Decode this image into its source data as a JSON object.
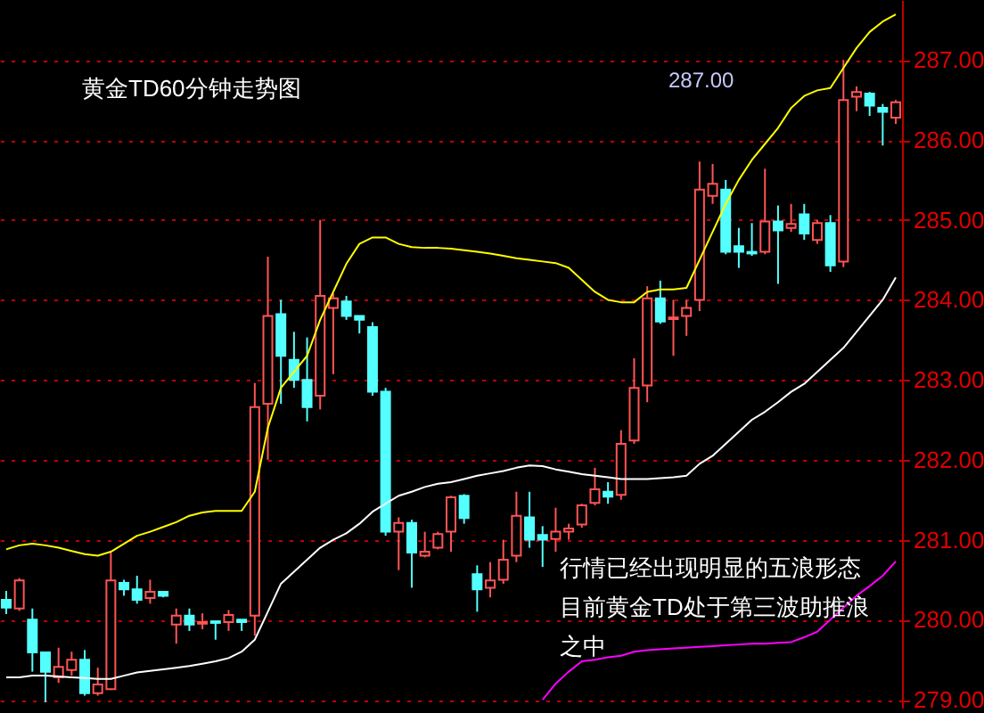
{
  "chart_data": {
    "type": "candlestick",
    "title": "黄金TD60分钟走势图",
    "annotations": [
      "287.00",
      "行情已经出现明显的五浪形态",
      "目前黄金TD处于第三波助推浪之中"
    ],
    "categories": [
      null,
      null,
      null,
      null,
      null,
      null,
      null,
      null,
      null,
      null,
      null,
      null,
      null,
      null,
      null,
      null,
      null,
      null,
      null,
      null,
      null,
      null,
      null,
      null,
      null,
      null,
      null,
      null,
      null,
      null,
      null,
      null,
      null,
      null,
      null,
      null,
      null,
      null,
      null,
      null,
      null,
      null,
      null,
      null,
      null,
      null,
      null,
      null,
      null,
      null,
      null,
      null,
      null,
      null,
      null,
      null,
      null,
      null,
      null,
      null,
      null,
      null,
      null,
      null,
      null,
      null,
      null,
      null,
      null
    ],
    "ohlc": [
      [
        280.25,
        280.36,
        280.07,
        280.15
      ],
      [
        280.14,
        280.52,
        280.11,
        280.49
      ],
      [
        280.0,
        280.14,
        279.35,
        279.59
      ],
      [
        279.59,
        279.6,
        278.97,
        279.35
      ],
      [
        279.28,
        279.65,
        279.21,
        279.41
      ],
      [
        279.37,
        279.6,
        279.3,
        279.5
      ],
      [
        279.5,
        279.62,
        279.05,
        279.08
      ],
      [
        279.08,
        279.4,
        279.05,
        279.19
      ],
      [
        279.13,
        280.84,
        279.12,
        280.49
      ],
      [
        280.46,
        280.5,
        280.3,
        280.38
      ],
      [
        280.38,
        280.55,
        280.2,
        280.25
      ],
      [
        280.27,
        280.5,
        280.2,
        280.35
      ],
      [
        280.35,
        280.36,
        280.28,
        280.3
      ],
      [
        279.94,
        280.14,
        279.7,
        280.05
      ],
      [
        280.05,
        280.14,
        279.86,
        279.94
      ],
      [
        279.95,
        280.08,
        279.88,
        279.97
      ],
      [
        279.98,
        279.98,
        279.75,
        279.96
      ],
      [
        279.97,
        280.12,
        279.86,
        280.06
      ],
      [
        280.0,
        280.0,
        279.86,
        279.97
      ],
      [
        280.05,
        282.96,
        279.8,
        282.66
      ],
      [
        282.7,
        284.54,
        282.0,
        283.8
      ],
      [
        283.82,
        284.0,
        282.7,
        283.3
      ],
      [
        283.25,
        283.6,
        282.9,
        283.0
      ],
      [
        283.0,
        283.53,
        282.48,
        282.66
      ],
      [
        282.8,
        285.0,
        282.63,
        284.05
      ],
      [
        283.9,
        284.08,
        283.07,
        284.02
      ],
      [
        283.98,
        284.05,
        283.75,
        283.8
      ],
      [
        283.8,
        283.8,
        283.58,
        283.75
      ],
      [
        283.66,
        283.72,
        282.8,
        282.85
      ],
      [
        282.85,
        282.9,
        281.05,
        281.1
      ],
      [
        281.1,
        281.28,
        280.62,
        281.21
      ],
      [
        281.21,
        281.25,
        280.4,
        280.84
      ],
      [
        280.8,
        281.1,
        280.78,
        280.85
      ],
      [
        280.9,
        281.1,
        280.88,
        281.07
      ],
      [
        281.1,
        281.55,
        280.85,
        281.53
      ],
      [
        281.55,
        281.57,
        281.2,
        281.27
      ],
      [
        280.57,
        280.68,
        280.1,
        280.38
      ],
      [
        280.4,
        280.72,
        280.28,
        280.49
      ],
      [
        280.5,
        281.0,
        280.45,
        280.75
      ],
      [
        280.8,
        281.6,
        280.72,
        281.3
      ],
      [
        281.28,
        281.6,
        280.9,
        281.0
      ],
      [
        281.06,
        281.17,
        280.66,
        281.0
      ],
      [
        281.01,
        281.4,
        280.85,
        281.1
      ],
      [
        281.1,
        281.2,
        281.0,
        281.14
      ],
      [
        281.19,
        281.45,
        281.15,
        281.43
      ],
      [
        281.46,
        281.9,
        281.43,
        281.63
      ],
      [
        281.6,
        281.72,
        281.45,
        281.54
      ],
      [
        281.56,
        282.37,
        281.5,
        282.2
      ],
      [
        282.24,
        283.27,
        282.2,
        282.9
      ],
      [
        282.93,
        284.17,
        282.72,
        284.02
      ],
      [
        284.02,
        284.24,
        283.7,
        283.73
      ],
      [
        283.76,
        284.0,
        283.3,
        283.78
      ],
      [
        283.8,
        284.0,
        283.55,
        283.9
      ],
      [
        284.0,
        285.73,
        283.86,
        285.38
      ],
      [
        285.3,
        285.7,
        285.2,
        285.45
      ],
      [
        285.38,
        285.5,
        284.57,
        284.6
      ],
      [
        284.67,
        284.9,
        284.4,
        284.6
      ],
      [
        284.6,
        284.96,
        284.55,
        284.58
      ],
      [
        284.6,
        285.64,
        284.57,
        284.98
      ],
      [
        284.98,
        285.18,
        284.2,
        284.87
      ],
      [
        284.9,
        285.2,
        284.85,
        284.95
      ],
      [
        285.07,
        285.2,
        284.75,
        284.83
      ],
      [
        284.75,
        285.0,
        284.7,
        284.96
      ],
      [
        284.96,
        285.06,
        284.35,
        284.43
      ],
      [
        284.48,
        287.0,
        284.41,
        286.5
      ],
      [
        286.54,
        286.67,
        286.36,
        286.6
      ],
      [
        286.58,
        286.6,
        286.3,
        286.43
      ],
      [
        286.4,
        286.45,
        285.93,
        286.35
      ],
      [
        286.28,
        286.5,
        286.2,
        286.47
      ]
    ],
    "colors": [
      "#54ffff",
      "#ff5454",
      "#54ffff",
      "#54ffff",
      "#ff5454",
      "#ff5454",
      "#54ffff",
      "#ff5454",
      "#ff5454",
      "#54ffff",
      "#54ffff",
      "#ff5454",
      "#54ffff",
      "#ff5454",
      "#54ffff",
      "#ff5454",
      "#54ffff",
      "#ff5454",
      "#54ffff",
      "#ff5454",
      "#ff5454",
      "#54ffff",
      "#54ffff",
      "#54ffff",
      "#ff5454",
      "#ff5454",
      "#54ffff",
      "#54ffff",
      "#54ffff",
      "#54ffff",
      "#ff5454",
      "#54ffff",
      "#ff5454",
      "#ff5454",
      "#ff5454",
      "#54ffff",
      "#54ffff",
      "#ff5454",
      "#ff5454",
      "#ff5454",
      "#54ffff",
      "#54ffff",
      "#ff5454",
      "#ff5454",
      "#ff5454",
      "#ff5454",
      "#54ffff",
      "#ff5454",
      "#ff5454",
      "#ff5454",
      "#54ffff",
      "#ff5454",
      "#ff5454",
      "#ff5454",
      "#ff5454",
      "#54ffff",
      "#54ffff",
      "#54ffff",
      "#ff5454",
      "#54ffff",
      "#ff5454",
      "#54ffff",
      "#ff5454",
      "#54ffff",
      "#ff5454",
      "#ff5454",
      "#54ffff",
      "#54ffff",
      "#ff5454"
    ],
    "series": [
      {
        "type": "line",
        "color": "#ffff00",
        "values": [
          280.88,
          280.93,
          280.95,
          280.93,
          280.9,
          280.86,
          280.82,
          280.8,
          280.85,
          280.95,
          281.05,
          281.1,
          281.16,
          281.22,
          281.3,
          281.34,
          281.36,
          281.36,
          281.36,
          281.6,
          282.4,
          282.9,
          283.1,
          283.3,
          283.75,
          284.1,
          284.45,
          284.7,
          284.78,
          284.78,
          284.7,
          284.66,
          284.65,
          284.65,
          284.64,
          284.62,
          284.6,
          284.58,
          284.55,
          284.52,
          284.5,
          284.48,
          284.46,
          284.4,
          284.25,
          284.1,
          284.0,
          283.97,
          283.97,
          284.1,
          284.13,
          284.13,
          284.15,
          284.5,
          284.85,
          285.2,
          285.5,
          285.75,
          285.95,
          286.15,
          286.4,
          286.55,
          286.62,
          286.65,
          286.9,
          287.15,
          287.35,
          287.48,
          287.57
        ]
      },
      {
        "type": "line",
        "color": "#ffffff",
        "values": [
          279.28,
          279.28,
          279.3,
          279.3,
          279.29,
          279.28,
          279.27,
          279.26,
          279.26,
          279.3,
          279.34,
          279.36,
          279.38,
          279.4,
          279.42,
          279.45,
          279.48,
          279.52,
          279.6,
          279.75,
          280.1,
          280.45,
          280.6,
          280.75,
          280.9,
          281.0,
          281.08,
          281.2,
          281.35,
          281.45,
          281.55,
          281.6,
          281.66,
          281.7,
          281.72,
          281.76,
          281.8,
          281.83,
          281.86,
          281.9,
          281.93,
          281.92,
          281.88,
          281.85,
          281.82,
          281.8,
          281.78,
          281.76,
          281.76,
          281.76,
          281.77,
          281.78,
          281.8,
          281.95,
          282.05,
          282.2,
          282.35,
          282.5,
          282.6,
          282.72,
          282.85,
          282.95,
          283.1,
          283.25,
          283.4,
          283.6,
          283.8,
          284.0,
          284.28
        ]
      },
      {
        "type": "line",
        "color": "#ff00ff",
        "values": [
          null,
          null,
          null,
          null,
          null,
          null,
          null,
          null,
          null,
          null,
          null,
          null,
          null,
          null,
          null,
          null,
          null,
          null,
          null,
          null,
          null,
          null,
          null,
          null,
          null,
          null,
          null,
          null,
          null,
          null,
          null,
          null,
          null,
          null,
          null,
          null,
          null,
          null,
          null,
          null,
          null,
          279.0,
          279.2,
          279.35,
          279.48,
          279.5,
          279.53,
          279.55,
          279.6,
          279.62,
          279.63,
          279.64,
          279.65,
          279.66,
          279.67,
          279.68,
          279.69,
          279.7,
          279.7,
          279.71,
          279.72,
          279.78,
          279.85,
          280.0,
          280.15,
          280.3,
          280.42,
          280.55,
          280.73
        ]
      }
    ],
    "ylim": [
      278.9,
      287.75
    ],
    "yticks": [
      {
        "value": 279,
        "label": "279.00"
      },
      {
        "value": 280,
        "label": "280.00"
      },
      {
        "value": 281,
        "label": "281.00"
      },
      {
        "value": 282,
        "label": "282.00"
      },
      {
        "value": 283,
        "label": "283.00"
      },
      {
        "value": 284,
        "label": "284.00"
      },
      {
        "value": 285,
        "label": "285.00"
      },
      {
        "value": 286,
        "label": "286.00"
      },
      {
        "value": 287,
        "label": "287.00"
      }
    ],
    "grid": "y",
    "tick_labels": "y"
  }
}
